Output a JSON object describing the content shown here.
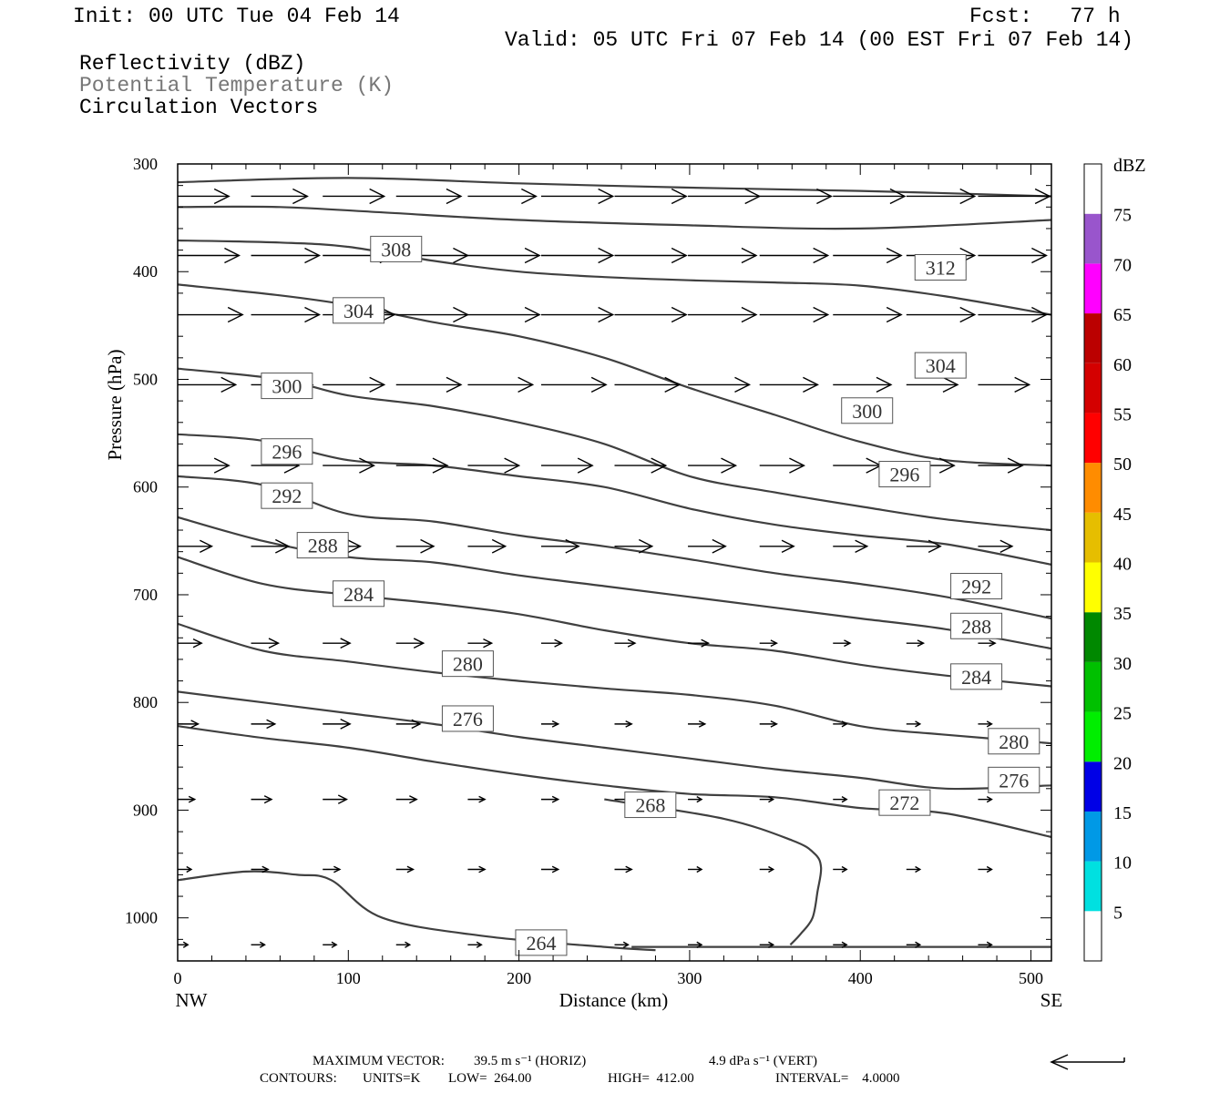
{
  "header": {
    "init": "Init: 00 UTC Tue 04 Feb 14",
    "fcst": "Fcst:   77 h",
    "valid": "Valid: 05 UTC Fri 07 Feb 14 (00 EST Fri 07 Feb 14)"
  },
  "legend": {
    "reflectivity": "Reflectivity (dBZ)",
    "theta": "Potential Temperature (K)",
    "vectors": "Circulation Vectors"
  },
  "colors": {
    "theta": "#404040",
    "vectors": "#000000",
    "frame": "#000000"
  },
  "footer": {
    "max_vector_label": "MAXIMUM VECTOR:",
    "max_horiz": "39.5 m s⁻¹ (HORIZ)",
    "max_vert": "4.9 dPa s⁻¹ (VERT)",
    "contours_label": "CONTOURS:",
    "units": "UNITS=K",
    "low": "LOW=  264.00",
    "high": "HIGH=  412.00",
    "interval": "INTERVAL=    4.0000"
  },
  "chart_data": {
    "type": "line",
    "title": "",
    "xlabel": "Distance (km)",
    "ylabel": "Pressure (hPa)",
    "xlim": [
      0,
      512
    ],
    "ylim": [
      1040,
      300
    ],
    "x_ticks": [
      0,
      100,
      200,
      300,
      400,
      500
    ],
    "y_ticks": [
      300,
      400,
      500,
      600,
      700,
      800,
      900,
      1000
    ],
    "x_end_labels": [
      "NW",
      "SE"
    ],
    "colorbar": {
      "unit": "dBZ",
      "levels": [
        5,
        10,
        15,
        20,
        25,
        30,
        35,
        40,
        45,
        50,
        55,
        60,
        65,
        70,
        75
      ],
      "colors": [
        "#ffffff",
        "#00e0e0",
        "#0099e6",
        "#0000e6",
        "#00ee00",
        "#00c000",
        "#008800",
        "#ffff00",
        "#e6be00",
        "#ff8c00",
        "#ff0000",
        "#d40000",
        "#bb0000",
        "#ff00ff",
        "#9955cc",
        "#ffffff"
      ]
    },
    "series": [
      {
        "name": "312",
        "x": [
          0,
          100,
          200,
          300,
          400,
          512
        ],
        "y": [
          317,
          313,
          318,
          322,
          325,
          330
        ],
        "labels": [
          {
            "x": 447,
            "y": 396
          }
        ]
      },
      {
        "name": "308",
        "x": [
          0,
          60,
          120,
          200,
          300,
          400,
          512
        ],
        "y": [
          340,
          340,
          345,
          352,
          357,
          360,
          352
        ],
        "labels": [
          {
            "x": 128,
            "y": 379
          }
        ]
      },
      {
        "name": "304",
        "x": [
          0,
          60,
          100,
          150,
          200,
          250,
          300,
          350,
          400,
          450,
          512
        ],
        "y": [
          371,
          373,
          377,
          390,
          400,
          405,
          408,
          410,
          413,
          423,
          440
        ],
        "labels": [
          {
            "x": 106,
            "y": 436
          },
          {
            "x": 447,
            "y": 487
          }
        ]
      },
      {
        "name": "300",
        "x": [
          0,
          60,
          100,
          150,
          200,
          250,
          300,
          350,
          400,
          450,
          512
        ],
        "y": [
          412,
          422,
          431,
          447,
          460,
          480,
          508,
          533,
          558,
          575,
          580
        ],
        "labels": [
          {
            "x": 64,
            "y": 506
          },
          {
            "x": 404,
            "y": 529
          }
        ]
      },
      {
        "name": "296",
        "x": [
          0,
          60,
          100,
          150,
          200,
          250,
          300,
          350,
          400,
          450,
          512
        ],
        "y": [
          490,
          500,
          515,
          525,
          540,
          560,
          590,
          605,
          618,
          630,
          640
        ],
        "labels": [
          {
            "x": 64,
            "y": 567
          },
          {
            "x": 426,
            "y": 588
          }
        ]
      },
      {
        "name": "292",
        "x": [
          0,
          50,
          100,
          150,
          200,
          250,
          300,
          350,
          400,
          450,
          512
        ],
        "y": [
          551,
          557,
          575,
          580,
          590,
          600,
          620,
          635,
          645,
          653,
          672
        ],
        "labels": [
          {
            "x": 64,
            "y": 608
          },
          {
            "x": 468,
            "y": 692
          }
        ]
      },
      {
        "name": "288",
        "x": [
          0,
          50,
          100,
          150,
          200,
          250,
          300,
          350,
          400,
          450,
          512
        ],
        "y": [
          590,
          598,
          625,
          632,
          645,
          655,
          667,
          680,
          690,
          702,
          722
        ],
        "labels": [
          {
            "x": 85,
            "y": 654
          },
          {
            "x": 468,
            "y": 729
          }
        ]
      },
      {
        "name": "284",
        "x": [
          0,
          50,
          100,
          150,
          200,
          250,
          300,
          350,
          400,
          450,
          512
        ],
        "y": [
          628,
          650,
          665,
          670,
          682,
          692,
          702,
          712,
          722,
          732,
          750
        ],
        "labels": [
          {
            "x": 106,
            "y": 699
          },
          {
            "x": 468,
            "y": 776
          }
        ]
      },
      {
        "name": "280",
        "x": [
          0,
          50,
          100,
          150,
          200,
          250,
          300,
          350,
          400,
          450,
          512
        ],
        "y": [
          665,
          690,
          700,
          708,
          718,
          733,
          745,
          752,
          765,
          775,
          785
        ],
        "labels": [
          {
            "x": 170,
            "y": 764
          },
          {
            "x": 490,
            "y": 836
          }
        ]
      },
      {
        "name": "276",
        "x": [
          0,
          50,
          100,
          150,
          200,
          250,
          300,
          350,
          400,
          450,
          512
        ],
        "y": [
          727,
          752,
          762,
          772,
          780,
          787,
          793,
          803,
          822,
          830,
          838
        ],
        "labels": [
          {
            "x": 170,
            "y": 815
          },
          {
            "x": 490,
            "y": 872
          }
        ]
      },
      {
        "name": "272",
        "x": [
          0,
          50,
          100,
          150,
          200,
          250,
          300,
          350,
          400,
          450,
          512
        ],
        "y": [
          790,
          800,
          810,
          820,
          832,
          842,
          852,
          862,
          870,
          880,
          877
        ],
        "labels": [
          {
            "x": 426,
            "y": 893
          }
        ]
      },
      {
        "name": "268",
        "x": [
          0,
          50,
          100,
          150,
          200,
          250,
          300,
          350,
          400,
          450,
          512
        ],
        "y": [
          822,
          833,
          842,
          855,
          867,
          877,
          885,
          888,
          898,
          903,
          925
        ],
        "labels": [
          {
            "x": 277,
            "y": 895
          }
        ]
      },
      {
        "name": "264",
        "x": [
          0,
          40,
          70,
          90,
          120,
          180,
          250,
          280
        ],
        "y": [
          965,
          957,
          960,
          965,
          1000,
          1017,
          1027,
          1030
        ],
        "labels": [
          {
            "x": 213,
            "y": 1023
          }
        ]
      }
    ],
    "contour_268_closing": {
      "x": [
        250,
        320,
        360,
        373,
        377,
        375,
        372,
        365,
        359
      ],
      "y": [
        890,
        908,
        928,
        940,
        953,
        975,
        1000,
        1015,
        1025
      ]
    },
    "contour_264_base": {
      "x": [
        266,
        512
      ],
      "y": [
        1027,
        1027
      ]
    },
    "vectors": {
      "description": "Circulation vectors, rows by pressure level, from NW to SE",
      "x": [
        0,
        43,
        85,
        128,
        170,
        213,
        256,
        299,
        341,
        384,
        427,
        469
      ],
      "rows": [
        {
          "p": 330,
          "len_km": [
            30,
            33,
            36,
            38,
            40,
            42,
            42,
            42,
            42,
            42,
            40,
            42
          ]
        },
        {
          "p": 385,
          "len_km": [
            36,
            40,
            42,
            42,
            42,
            42,
            42,
            40,
            40,
            40,
            40,
            40
          ]
        },
        {
          "p": 440,
          "len_km": [
            38,
            40,
            42,
            42,
            42,
            42,
            42,
            40,
            40,
            40,
            40,
            40
          ]
        },
        {
          "p": 505,
          "len_km": [
            34,
            36,
            36,
            38,
            38,
            38,
            38,
            36,
            34,
            34,
            30,
            30
          ]
        },
        {
          "p": 580,
          "len_km": [
            30,
            28,
            30,
            30,
            30,
            30,
            30,
            28,
            26,
            28,
            28,
            26
          ]
        },
        {
          "p": 655,
          "len_km": [
            20,
            22,
            22,
            22,
            22,
            22,
            22,
            22,
            20,
            20,
            20,
            20
          ]
        },
        {
          "p": 745,
          "len_km": [
            14,
            16,
            16,
            16,
            14,
            12,
            12,
            12,
            10,
            10,
            10,
            10
          ]
        },
        {
          "p": 820,
          "len_km": [
            12,
            14,
            16,
            14,
            12,
            10,
            10,
            10,
            10,
            8,
            8,
            8
          ]
        },
        {
          "p": 890,
          "len_km": [
            10,
            12,
            14,
            12,
            10,
            10,
            10,
            8,
            8,
            8,
            8,
            8
          ]
        },
        {
          "p": 955,
          "len_km": [
            8,
            10,
            10,
            10,
            10,
            10,
            10,
            8,
            8,
            8,
            8,
            8
          ]
        },
        {
          "p": 1025,
          "len_km": [
            6,
            8,
            8,
            8,
            8,
            8,
            8,
            8,
            8,
            8,
            8,
            8
          ]
        }
      ]
    }
  }
}
